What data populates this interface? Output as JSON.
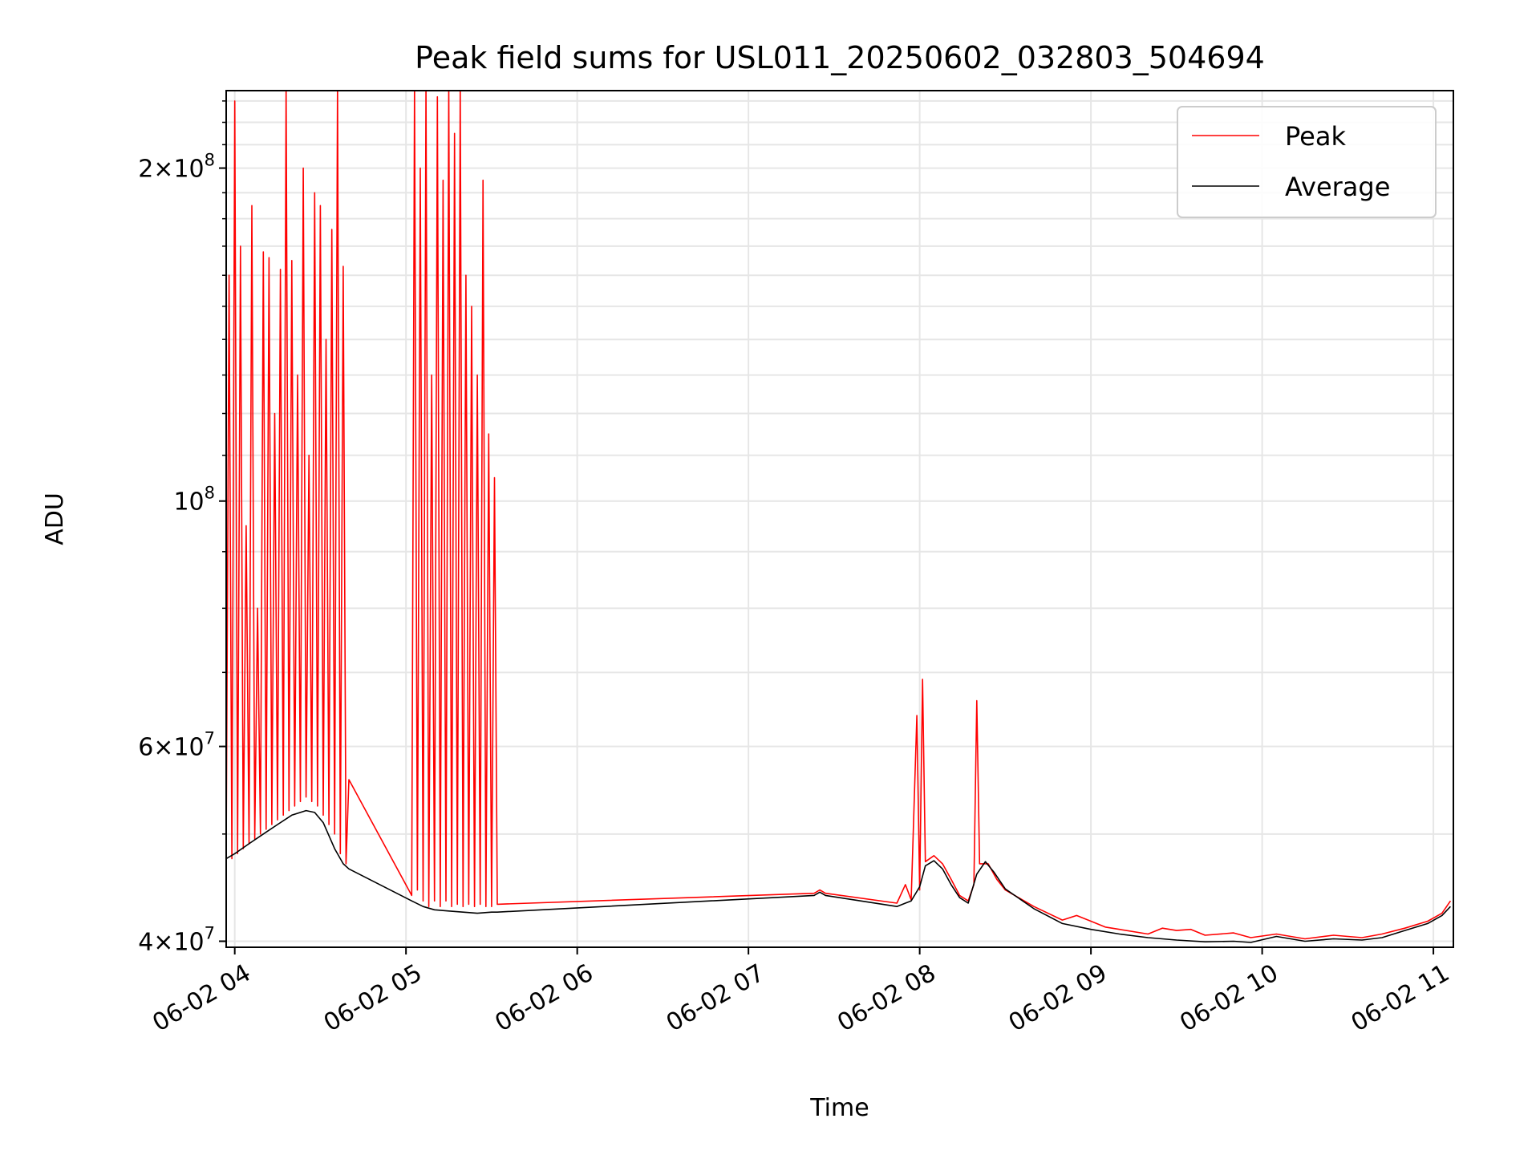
{
  "chart_data": {
    "type": "line",
    "title": "Peak field sums for USL011_20250602_032803_504694",
    "xlabel": "Time",
    "ylabel": "ADU",
    "yscale": "log",
    "ylim": [
      39500000,
      235000000
    ],
    "xlim": [
      "06-02 03:57",
      "06-02 11:07"
    ],
    "x_ticks": [
      "06-02 04",
      "06-02 05",
      "06-02 06",
      "06-02 07",
      "06-02 08",
      "06-02 09",
      "06-02 10",
      "06-02 11"
    ],
    "y_ticks": [
      {
        "value": 40000000,
        "mantissa": "4",
        "exp": "7"
      },
      {
        "value": 60000000,
        "mantissa": "6",
        "exp": "7"
      },
      {
        "value": 100000000,
        "mantissa": "",
        "exp": "8"
      },
      {
        "value": 200000000,
        "mantissa": "2",
        "exp": "8"
      }
    ],
    "grid": true,
    "legend_position": "top-right",
    "series": [
      {
        "name": "Peak",
        "color": "#ff0000",
        "points": [
          [
            "06-02 03:57",
            48000000
          ],
          [
            "06-02 03:58",
            160000000
          ],
          [
            "06-02 03:59",
            47500000
          ],
          [
            "06-02 04:00",
            230000000
          ],
          [
            "06-02 04:01",
            48000000
          ],
          [
            "06-02 04:02",
            170000000
          ],
          [
            "06-02 04:03",
            48500000
          ],
          [
            "06-02 04:04",
            95000000
          ],
          [
            "06-02 04:05",
            49000000
          ],
          [
            "06-02 04:06",
            185000000
          ],
          [
            "06-02 04:07",
            49500000
          ],
          [
            "06-02 04:08",
            80000000
          ],
          [
            "06-02 04:09",
            50000000
          ],
          [
            "06-02 04:10",
            168000000
          ],
          [
            "06-02 04:11",
            50500000
          ],
          [
            "06-02 04:12",
            166000000
          ],
          [
            "06-02 04:13",
            51000000
          ],
          [
            "06-02 04:14",
            120000000
          ],
          [
            "06-02 04:15",
            51500000
          ],
          [
            "06-02 04:16",
            162000000
          ],
          [
            "06-02 04:17",
            52000000
          ],
          [
            "06-02 04:18",
            238000000
          ],
          [
            "06-02 04:19",
            52500000
          ],
          [
            "06-02 04:20",
            165000000
          ],
          [
            "06-02 04:21",
            53000000
          ],
          [
            "06-02 04:22",
            130000000
          ],
          [
            "06-02 04:23",
            53500000
          ],
          [
            "06-02 04:24",
            200000000
          ],
          [
            "06-02 04:25",
            54000000
          ],
          [
            "06-02 04:26",
            110000000
          ],
          [
            "06-02 04:27",
            53500000
          ],
          [
            "06-02 04:28",
            190000000
          ],
          [
            "06-02 04:29",
            53000000
          ],
          [
            "06-02 04:30",
            185000000
          ],
          [
            "06-02 04:31",
            52000000
          ],
          [
            "06-02 04:32",
            140000000
          ],
          [
            "06-02 04:33",
            51000000
          ],
          [
            "06-02 04:34",
            176000000
          ],
          [
            "06-02 04:35",
            50000000
          ],
          [
            "06-02 04:36",
            238000000
          ],
          [
            "06-02 04:37",
            48000000
          ],
          [
            "06-02 04:38",
            163000000
          ],
          [
            "06-02 04:39",
            47000000
          ],
          [
            "06-02 04:40",
            56000000
          ],
          [
            "06-02 05:02",
            44000000
          ],
          [
            "06-02 05:03",
            238000000
          ],
          [
            "06-02 05:04",
            44500000
          ],
          [
            "06-02 05:05",
            200000000
          ],
          [
            "06-02 05:06",
            43500000
          ],
          [
            "06-02 05:07",
            238000000
          ],
          [
            "06-02 05:08",
            43000000
          ],
          [
            "06-02 05:09",
            130000000
          ],
          [
            "06-02 05:10",
            43500000
          ],
          [
            "06-02 05:11",
            232000000
          ],
          [
            "06-02 05:12",
            43000000
          ],
          [
            "06-02 05:13",
            195000000
          ],
          [
            "06-02 05:14",
            43500000
          ],
          [
            "06-02 05:15",
            238000000
          ],
          [
            "06-02 05:16",
            43000000
          ],
          [
            "06-02 05:17",
            215000000
          ],
          [
            "06-02 05:18",
            43200000
          ],
          [
            "06-02 05:19",
            238000000
          ],
          [
            "06-02 05:20",
            43000000
          ],
          [
            "06-02 05:21",
            160000000
          ],
          [
            "06-02 05:22",
            43200000
          ],
          [
            "06-02 05:23",
            150000000
          ],
          [
            "06-02 05:24",
            43000000
          ],
          [
            "06-02 05:25",
            130000000
          ],
          [
            "06-02 05:26",
            43200000
          ],
          [
            "06-02 05:27",
            195000000
          ],
          [
            "06-02 05:28",
            43000000
          ],
          [
            "06-02 05:29",
            115000000
          ],
          [
            "06-02 05:30",
            43000000
          ],
          [
            "06-02 05:31",
            105000000
          ],
          [
            "06-02 05:32",
            43200000
          ],
          [
            "06-02 07:23",
            44200000
          ],
          [
            "06-02 07:25",
            44500000
          ],
          [
            "06-02 07:27",
            44200000
          ],
          [
            "06-02 07:52",
            43300000
          ],
          [
            "06-02 07:55",
            45000000
          ],
          [
            "06-02 07:57",
            43600000
          ],
          [
            "06-02 07:59",
            64000000
          ],
          [
            "06-02 08:00",
            44500000
          ],
          [
            "06-02 08:01",
            69000000
          ],
          [
            "06-02 08:02",
            47200000
          ],
          [
            "06-02 08:05",
            47800000
          ],
          [
            "06-02 08:08",
            47000000
          ],
          [
            "06-02 08:11",
            45500000
          ],
          [
            "06-02 08:14",
            44000000
          ],
          [
            "06-02 08:17",
            43500000
          ],
          [
            "06-02 08:19",
            45000000
          ],
          [
            "06-02 08:20",
            66000000
          ],
          [
            "06-02 08:21",
            47000000
          ],
          [
            "06-02 08:24",
            47000000
          ],
          [
            "06-02 08:27",
            45500000
          ],
          [
            "06-02 08:30",
            44500000
          ],
          [
            "06-02 08:40",
            43000000
          ],
          [
            "06-02 08:50",
            41800000
          ],
          [
            "06-02 08:55",
            42200000
          ],
          [
            "06-02 09:00",
            41700000
          ],
          [
            "06-02 09:05",
            41200000
          ],
          [
            "06-02 09:10",
            41000000
          ],
          [
            "06-02 09:20",
            40600000
          ],
          [
            "06-02 09:25",
            41100000
          ],
          [
            "06-02 09:30",
            40900000
          ],
          [
            "06-02 09:35",
            41000000
          ],
          [
            "06-02 09:40",
            40500000
          ],
          [
            "06-02 09:50",
            40700000
          ],
          [
            "06-02 09:56",
            40300000
          ],
          [
            "06-02 10:05",
            40600000
          ],
          [
            "06-02 10:15",
            40200000
          ],
          [
            "06-02 10:25",
            40500000
          ],
          [
            "06-02 10:35",
            40300000
          ],
          [
            "06-02 10:42",
            40600000
          ],
          [
            "06-02 10:50",
            41100000
          ],
          [
            "06-02 10:58",
            41700000
          ],
          [
            "06-02 11:03",
            42400000
          ],
          [
            "06-02 11:06",
            43500000
          ]
        ]
      },
      {
        "name": "Average",
        "color": "#000000",
        "points": [
          [
            "06-02 03:57",
            47500000
          ],
          [
            "06-02 04:00",
            48000000
          ],
          [
            "06-02 04:05",
            49000000
          ],
          [
            "06-02 04:10",
            50000000
          ],
          [
            "06-02 04:15",
            51000000
          ],
          [
            "06-02 04:20",
            52000000
          ],
          [
            "06-02 04:25",
            52500000
          ],
          [
            "06-02 04:28",
            52300000
          ],
          [
            "06-02 04:31",
            51200000
          ],
          [
            "06-02 04:35",
            48500000
          ],
          [
            "06-02 04:38",
            47000000
          ],
          [
            "06-02 04:40",
            46500000
          ],
          [
            "06-02 05:02",
            43500000
          ],
          [
            "06-02 05:06",
            43000000
          ],
          [
            "06-02 05:10",
            42700000
          ],
          [
            "06-02 05:15",
            42600000
          ],
          [
            "06-02 05:20",
            42500000
          ],
          [
            "06-02 05:25",
            42400000
          ],
          [
            "06-02 05:30",
            42500000
          ],
          [
            "06-02 05:32",
            42500000
          ],
          [
            "06-02 07:23",
            44000000
          ],
          [
            "06-02 07:25",
            44300000
          ],
          [
            "06-02 07:27",
            44000000
          ],
          [
            "06-02 07:52",
            43000000
          ],
          [
            "06-02 07:55",
            43300000
          ],
          [
            "06-02 07:57",
            43500000
          ],
          [
            "06-02 08:00",
            44800000
          ],
          [
            "06-02 08:02",
            46800000
          ],
          [
            "06-02 08:05",
            47300000
          ],
          [
            "06-02 08:08",
            46500000
          ],
          [
            "06-02 08:11",
            45000000
          ],
          [
            "06-02 08:14",
            43800000
          ],
          [
            "06-02 08:17",
            43300000
          ],
          [
            "06-02 08:20",
            46000000
          ],
          [
            "06-02 08:23",
            47200000
          ],
          [
            "06-02 08:26",
            46200000
          ],
          [
            "06-02 08:30",
            44600000
          ],
          [
            "06-02 08:40",
            42800000
          ],
          [
            "06-02 08:50",
            41500000
          ],
          [
            "06-02 09:00",
            41000000
          ],
          [
            "06-02 09:10",
            40600000
          ],
          [
            "06-02 09:20",
            40300000
          ],
          [
            "06-02 09:30",
            40100000
          ],
          [
            "06-02 09:40",
            39950000
          ],
          [
            "06-02 09:50",
            40000000
          ],
          [
            "06-02 09:56",
            39900000
          ],
          [
            "06-02 10:05",
            40400000
          ],
          [
            "06-02 10:15",
            40000000
          ],
          [
            "06-02 10:25",
            40200000
          ],
          [
            "06-02 10:35",
            40100000
          ],
          [
            "06-02 10:42",
            40300000
          ],
          [
            "06-02 10:50",
            40900000
          ],
          [
            "06-02 10:58",
            41500000
          ],
          [
            "06-02 11:03",
            42200000
          ],
          [
            "06-02 11:06",
            43000000
          ]
        ]
      }
    ]
  }
}
